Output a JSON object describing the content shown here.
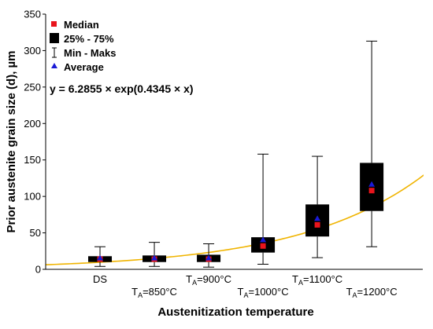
{
  "chart_data": {
    "type": "box",
    "xlabel": "Austenitization temperature",
    "ylabel": "Prior austenite grain size (d), µm",
    "ylim": [
      0,
      350
    ],
    "yticks": [
      0,
      50,
      100,
      150,
      200,
      250,
      300,
      350
    ],
    "categories": [
      {
        "main": "DS",
        "sub": "",
        "rest": ""
      },
      {
        "main": "T",
        "sub": "A",
        "rest": "=850°C"
      },
      {
        "main": "T",
        "sub": "A",
        "rest": "=900°C"
      },
      {
        "main": "T",
        "sub": "A",
        "rest": "=1000°C"
      },
      {
        "main": "T",
        "sub": "A",
        "rest": "=1100°C"
      },
      {
        "main": "T",
        "sub": "A",
        "rest": "=1200°C"
      }
    ],
    "boxes": [
      {
        "min": 4,
        "q1": 10,
        "median": 14,
        "q3": 18,
        "max": 31,
        "average": 15
      },
      {
        "min": 4,
        "q1": 10,
        "median": 14,
        "q3": 19,
        "max": 37,
        "average": 15
      },
      {
        "min": 3,
        "q1": 10,
        "median": 14,
        "q3": 20,
        "max": 35,
        "average": 15
      },
      {
        "min": 7,
        "q1": 23,
        "median": 32,
        "q3": 44,
        "max": 158,
        "average": 40
      },
      {
        "min": 16,
        "q1": 45,
        "median": 61,
        "q3": 89,
        "max": 155,
        "average": 69
      },
      {
        "min": 31,
        "q1": 80,
        "median": 108,
        "q3": 146,
        "max": 313,
        "average": 116
      }
    ],
    "fit": {
      "a": 6.2855,
      "b": 0.4345,
      "x_range": [
        0,
        7.12
      ],
      "color": "#f0b400"
    },
    "legend": {
      "position": "top-left",
      "items": [
        {
          "label": "Median",
          "marker": "square",
          "color": "#e8141c"
        },
        {
          "label": "25% - 75%",
          "marker": "box",
          "color": "#000000"
        },
        {
          "label": "Min - Maks",
          "marker": "whisker",
          "color": "#000000"
        },
        {
          "label": "Average",
          "marker": "triangle",
          "color": "#1a1ad6"
        }
      ]
    },
    "equation": "y = 6.2855 × exp(0.4345 × x)",
    "grid": false
  }
}
